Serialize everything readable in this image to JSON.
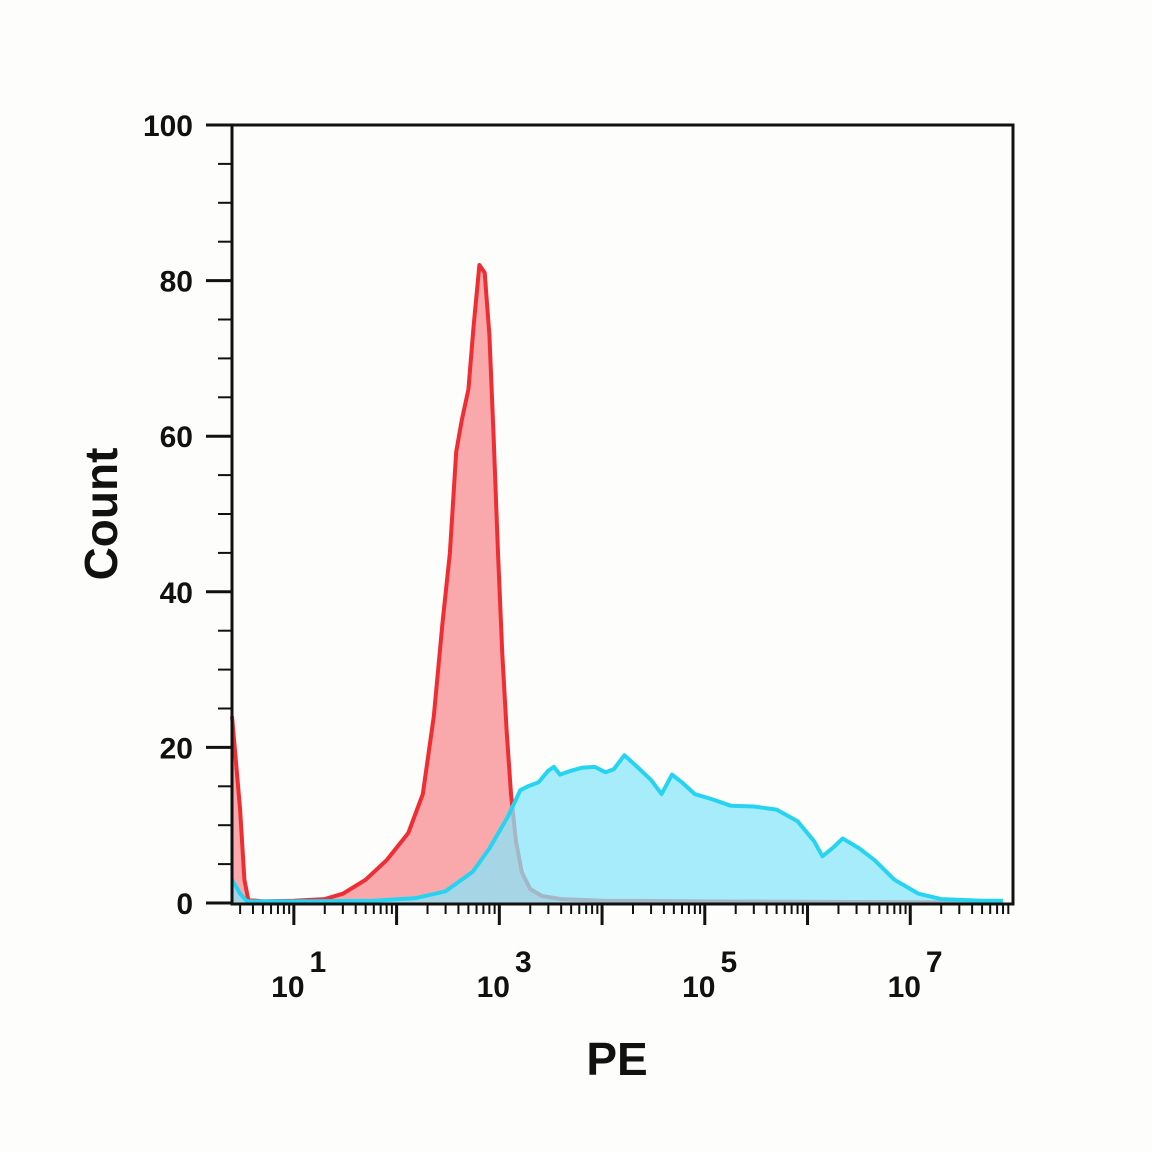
{
  "chart_data": {
    "type": "area",
    "xlabel": "PE",
    "ylabel": "Count",
    "xscale": "log",
    "xlim": [
      2.5,
      100000000
    ],
    "ylim": [
      0,
      100
    ],
    "y_ticks": [
      "0",
      "20",
      "40",
      "60",
      "80",
      "100"
    ],
    "x_ticks": [
      {
        "base": "10",
        "exp": "1",
        "value": 10
      },
      {
        "base": "10",
        "exp": "3",
        "value": 1000
      },
      {
        "base": "10",
        "exp": "5",
        "value": 100000
      },
      {
        "base": "10",
        "exp": "7",
        "value": 10000000
      }
    ],
    "grid": false,
    "series": [
      {
        "color_fill": "#f9a3a6",
        "color_line": "#ee2e33",
        "points": [
          [
            2.5,
            24
          ],
          [
            3.0,
            12
          ],
          [
            3.3,
            3
          ],
          [
            3.6,
            0.4
          ],
          [
            5,
            0.2
          ],
          [
            10,
            0.3
          ],
          [
            20,
            0.5
          ],
          [
            30,
            1.2
          ],
          [
            50,
            3.0
          ],
          [
            80,
            5.5
          ],
          [
            130,
            9
          ],
          [
            180,
            14
          ],
          [
            230,
            24
          ],
          [
            280,
            36
          ],
          [
            330,
            45
          ],
          [
            380,
            58
          ],
          [
            430,
            62
          ],
          [
            500,
            66
          ],
          [
            560,
            74
          ],
          [
            640,
            82
          ],
          [
            720,
            81
          ],
          [
            800,
            73
          ],
          [
            880,
            60
          ],
          [
            970,
            45
          ],
          [
            1070,
            32
          ],
          [
            1180,
            22
          ],
          [
            1300,
            14
          ],
          [
            1450,
            8
          ],
          [
            1650,
            4
          ],
          [
            2000,
            1.8
          ],
          [
            2600,
            0.9
          ],
          [
            4000,
            0.5
          ],
          [
            10000,
            0.3
          ],
          [
            100000,
            0.2
          ],
          [
            10000000,
            0.1
          ],
          [
            80000000,
            0.1
          ]
        ]
      },
      {
        "color_fill": "#8ae5fa",
        "color_line": "#26d4f2",
        "points": [
          [
            2.5,
            3
          ],
          [
            3.0,
            1.2
          ],
          [
            3.5,
            0.2
          ],
          [
            10,
            0.2
          ],
          [
            60,
            0.3
          ],
          [
            150,
            0.6
          ],
          [
            300,
            1.5
          ],
          [
            550,
            4
          ],
          [
            800,
            7
          ],
          [
            1200,
            11
          ],
          [
            1600,
            14.5
          ],
          [
            1900,
            15
          ],
          [
            2400,
            15.5
          ],
          [
            3000,
            17
          ],
          [
            3400,
            17.5
          ],
          [
            3900,
            16.5
          ],
          [
            5000,
            17
          ],
          [
            6500,
            17.4
          ],
          [
            8500,
            17.5
          ],
          [
            10800,
            16.8
          ],
          [
            13000,
            17.2
          ],
          [
            16500,
            19
          ],
          [
            22000,
            17.5
          ],
          [
            30000,
            15.8
          ],
          [
            38000,
            14
          ],
          [
            48000,
            16.5
          ],
          [
            60000,
            15.5
          ],
          [
            80000,
            14
          ],
          [
            120000,
            13.3
          ],
          [
            180000,
            12.5
          ],
          [
            300000,
            12.4
          ],
          [
            500000,
            12
          ],
          [
            800000,
            10.5
          ],
          [
            1150000,
            8
          ],
          [
            1400000,
            6
          ],
          [
            1800000,
            7.2
          ],
          [
            2200000,
            8.3
          ],
          [
            3200000,
            7
          ],
          [
            4500000,
            5.5
          ],
          [
            7000000,
            3
          ],
          [
            12000000,
            1.2
          ],
          [
            20000000,
            0.5
          ],
          [
            50000000,
            0.3
          ],
          [
            80000000,
            0.3
          ]
        ]
      }
    ]
  }
}
